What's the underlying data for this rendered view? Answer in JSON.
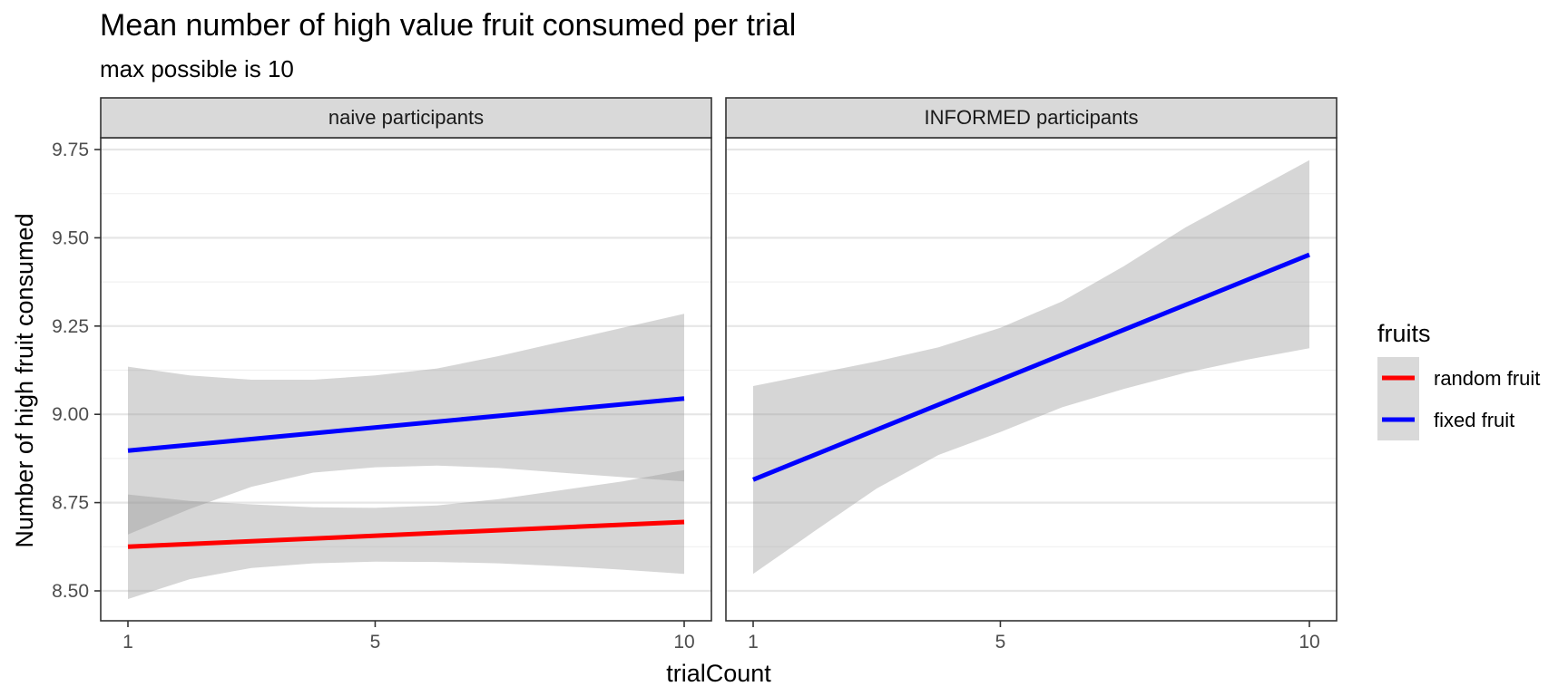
{
  "chart_data": {
    "type": "line",
    "title": "Mean number of high value fruit consumed per trial",
    "subtitle": "max possible is 10",
    "xlabel": "trialCount",
    "ylabel": "Number of high fruit consumed",
    "xlim": [
      0.5,
      10.5
    ],
    "ylim": [
      8.42,
      9.8
    ],
    "x_ticks": [
      1,
      5,
      10
    ],
    "x_tick_labels": [
      "1",
      "5",
      "10"
    ],
    "y_ticks": [
      8.5,
      8.75,
      9.0,
      9.25,
      9.5,
      9.75
    ],
    "y_tick_labels": [
      "8.50",
      "8.75",
      "9.00",
      "9.25",
      "9.50",
      "9.75"
    ],
    "grid": true,
    "legend": {
      "title": "fruits",
      "position": "right",
      "items": [
        {
          "label": "random fruit",
          "color": "#ff0000"
        },
        {
          "label": "fixed fruit",
          "color": "#0000ff"
        }
      ]
    },
    "panels": [
      {
        "label": "naive participants",
        "series": [
          {
            "name": "random fruit",
            "color": "#ff0000",
            "x": [
              1,
              10
            ],
            "y": [
              8.625,
              8.695
            ],
            "band_x": [
              1,
              2,
              3,
              4,
              5,
              6,
              7,
              8,
              9,
              10
            ],
            "band_lower": [
              8.477,
              8.533,
              8.565,
              8.578,
              8.583,
              8.582,
              8.578,
              8.57,
              8.56,
              8.548
            ],
            "band_upper": [
              8.773,
              8.755,
              8.745,
              8.737,
              8.735,
              8.742,
              8.76,
              8.785,
              8.81,
              8.842
            ]
          },
          {
            "name": "fixed fruit",
            "color": "#0000ff",
            "x": [
              1,
              10
            ],
            "y": [
              8.897,
              9.045
            ],
            "band_x": [
              1,
              2,
              3,
              4,
              5,
              6,
              7,
              8,
              9,
              10
            ],
            "band_lower": [
              8.66,
              8.732,
              8.795,
              8.835,
              8.85,
              8.855,
              8.848,
              8.835,
              8.822,
              8.81
            ],
            "band_upper": [
              9.135,
              9.11,
              9.098,
              9.098,
              9.11,
              9.13,
              9.165,
              9.205,
              9.245,
              9.285
            ]
          }
        ]
      },
      {
        "label": "INFORMED participants",
        "series": [
          {
            "name": "fixed fruit",
            "color": "#0000ff",
            "x": [
              1,
              10
            ],
            "y": [
              8.815,
              9.452
            ],
            "band_x": [
              1,
              2,
              3,
              4,
              5,
              6,
              7,
              8,
              9,
              10
            ],
            "band_lower": [
              8.548,
              8.67,
              8.79,
              8.885,
              8.95,
              9.02,
              9.072,
              9.118,
              9.155,
              9.187
            ],
            "band_upper": [
              9.08,
              9.115,
              9.15,
              9.19,
              9.245,
              9.32,
              9.42,
              9.53,
              9.625,
              9.72
            ]
          }
        ]
      }
    ]
  }
}
